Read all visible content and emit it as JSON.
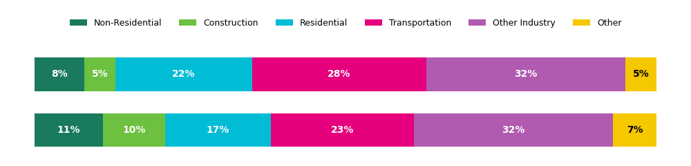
{
  "chart_data": {
    "type": "bar",
    "orientation": "horizontal",
    "stacked": true,
    "categories": [
      null,
      null
    ],
    "series": [
      {
        "name": "Non-Residential",
        "color": "#1a7a5e",
        "values": [
          8,
          11
        ],
        "value_labels": [
          "8%",
          "11%"
        ]
      },
      {
        "name": "Construction",
        "color": "#6dc040",
        "values": [
          5,
          10
        ],
        "value_labels": [
          "5%",
          "10%"
        ]
      },
      {
        "name": "Residential",
        "color": "#00bcd4",
        "values": [
          22,
          17
        ],
        "value_labels": [
          "22%",
          "17%"
        ]
      },
      {
        "name": "Transportation",
        "color": "#e6007e",
        "values": [
          28,
          23
        ],
        "value_labels": [
          "28%",
          "23%"
        ]
      },
      {
        "name": "Other Industry",
        "color": "#b05ab0",
        "values": [
          32,
          32
        ],
        "value_labels": [
          "32%",
          "32%"
        ]
      },
      {
        "name": "Other",
        "color": "#f5c800",
        "values": [
          5,
          7
        ],
        "value_labels": [
          "5%",
          "7%"
        ]
      }
    ],
    "xlim": [
      0,
      100
    ],
    "data_labels": true,
    "tick_labels": false,
    "legend": "upper center"
  }
}
